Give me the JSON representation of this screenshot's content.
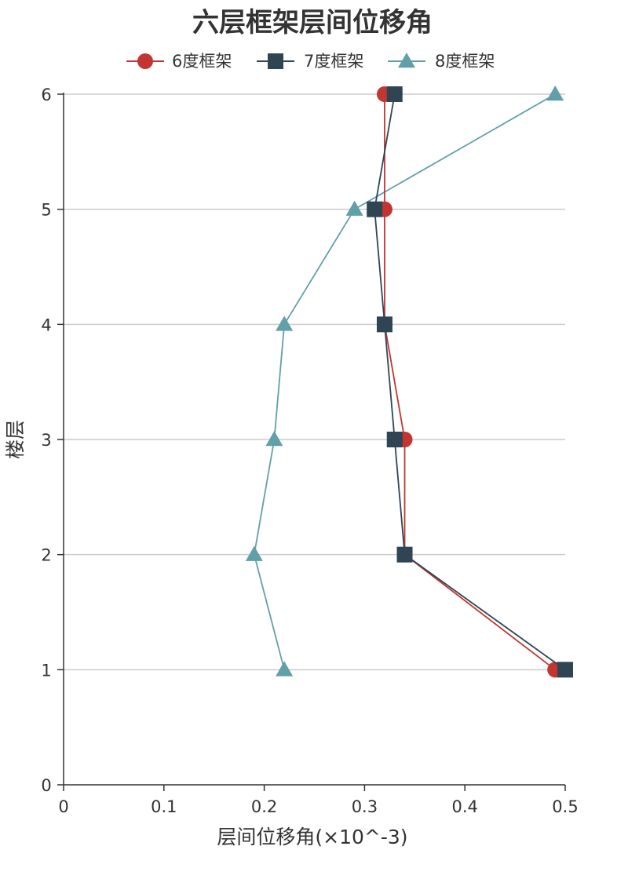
{
  "chart_data": {
    "type": "line",
    "title": "六层框架层间位移角",
    "xlabel": "层间位移角(×10^-3)",
    "ylabel": "楼层",
    "xlim": [
      0,
      0.5
    ],
    "ylim": [
      0,
      6
    ],
    "x_ticks": [
      "0",
      "0.1",
      "0.2",
      "0.3",
      "0.4",
      "0.5"
    ],
    "y_ticks": [
      "0",
      "1",
      "2",
      "3",
      "4",
      "5",
      "6"
    ],
    "grid": "horizontal",
    "legend_position": "top-center",
    "series": [
      {
        "name": "6度框架",
        "color": "#c23531",
        "marker": "circle",
        "points": [
          {
            "floor": 1,
            "drift": 0.49
          },
          {
            "floor": 2,
            "drift": 0.34
          },
          {
            "floor": 3,
            "drift": 0.34
          },
          {
            "floor": 4,
            "drift": 0.32
          },
          {
            "floor": 5,
            "drift": 0.32
          },
          {
            "floor": 6,
            "drift": 0.32
          }
        ]
      },
      {
        "name": "7度框架",
        "color": "#2f4554",
        "marker": "square",
        "points": [
          {
            "floor": 1,
            "drift": 0.5
          },
          {
            "floor": 2,
            "drift": 0.34
          },
          {
            "floor": 3,
            "drift": 0.33
          },
          {
            "floor": 4,
            "drift": 0.32
          },
          {
            "floor": 5,
            "drift": 0.31
          },
          {
            "floor": 6,
            "drift": 0.33
          }
        ]
      },
      {
        "name": "8度框架",
        "color": "#61a0a8",
        "marker": "triangle",
        "points": [
          {
            "floor": 1,
            "drift": 0.22
          },
          {
            "floor": 2,
            "drift": 0.19
          },
          {
            "floor": 3,
            "drift": 0.21
          },
          {
            "floor": 4,
            "drift": 0.22
          },
          {
            "floor": 5,
            "drift": 0.29
          },
          {
            "floor": 6,
            "drift": 0.49
          }
        ]
      }
    ]
  }
}
